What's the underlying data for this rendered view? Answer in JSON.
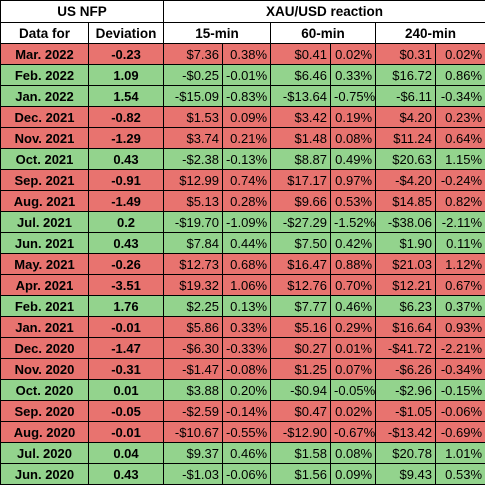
{
  "header": {
    "groups": [
      "US NFP",
      "XAU/USD reaction"
    ],
    "columns": [
      "Data for",
      "Deviation",
      "15-min",
      "60-min",
      "240-min"
    ]
  },
  "colors": {
    "negative": "#e8736f",
    "positive": "#93d38d"
  },
  "table": {
    "rows": [
      {
        "tone": "negative",
        "cells": [
          "Mar. 2022",
          "-0.23",
          "$7.36",
          "0.38%",
          "$0.41",
          "0.02%",
          "$0.31",
          "0.02%"
        ]
      },
      {
        "tone": "positive",
        "cells": [
          "Feb. 2022",
          "1.09",
          "-$0.25",
          "-0.01%",
          "$6.46",
          "0.33%",
          "$16.72",
          "0.86%"
        ]
      },
      {
        "tone": "positive",
        "cells": [
          "Jan. 2022",
          "1.54",
          "-$15.09",
          "-0.83%",
          "-$13.64",
          "-0.75%",
          "-$6.11",
          "-0.34%"
        ]
      },
      {
        "tone": "negative",
        "cells": [
          "Dec. 2021",
          "-0.82",
          "$1.53",
          "0.09%",
          "$3.42",
          "0.19%",
          "$4.20",
          "0.23%"
        ]
      },
      {
        "tone": "negative",
        "cells": [
          "Nov. 2021",
          "-1.29",
          "$3.74",
          "0.21%",
          "$1.48",
          "0.08%",
          "$11.24",
          "0.64%"
        ]
      },
      {
        "tone": "positive",
        "cells": [
          "Oct. 2021",
          "0.43",
          "-$2.38",
          "-0.13%",
          "$8.87",
          "0.49%",
          "$20.63",
          "1.15%"
        ]
      },
      {
        "tone": "negative",
        "cells": [
          "Sep. 2021",
          "-0.91",
          "$12.99",
          "0.74%",
          "$17.17",
          "0.97%",
          "-$4.20",
          "-0.24%"
        ]
      },
      {
        "tone": "negative",
        "cells": [
          "Aug. 2021",
          "-1.49",
          "$5.13",
          "0.28%",
          "$9.66",
          "0.53%",
          "$14.85",
          "0.82%"
        ]
      },
      {
        "tone": "positive",
        "cells": [
          "Jul. 2021",
          "0.2",
          "-$19.70",
          "-1.09%",
          "-$27.29",
          "-1.52%",
          "-$38.06",
          "-2.11%"
        ]
      },
      {
        "tone": "positive",
        "cells": [
          "Jun. 2021",
          "0.43",
          "$7.84",
          "0.44%",
          "$7.50",
          "0.42%",
          "$1.90",
          "0.11%"
        ]
      },
      {
        "tone": "negative",
        "cells": [
          "May. 2021",
          "-0.26",
          "$12.73",
          "0.68%",
          "$16.47",
          "0.88%",
          "$21.03",
          "1.12%"
        ]
      },
      {
        "tone": "negative",
        "cells": [
          "Apr. 2021",
          "-3.51",
          "$19.32",
          "1.06%",
          "$12.76",
          "0.70%",
          "$12.21",
          "0.67%"
        ]
      },
      {
        "tone": "positive",
        "cells": [
          "Feb. 2021",
          "1.76",
          "$2.25",
          "0.13%",
          "$7.77",
          "0.46%",
          "$6.23",
          "0.37%"
        ]
      },
      {
        "tone": "negative",
        "cells": [
          "Jan. 2021",
          "-0.01",
          "$5.86",
          "0.33%",
          "$5.16",
          "0.29%",
          "$16.64",
          "0.93%"
        ]
      },
      {
        "tone": "negative",
        "cells": [
          "Dec. 2020",
          "-1.47",
          "-$6.30",
          "-0.33%",
          "$0.27",
          "0.01%",
          "-$41.72",
          "-2.21%"
        ]
      },
      {
        "tone": "negative",
        "cells": [
          "Nov. 2020",
          "-0.31",
          "-$1.47",
          "-0.08%",
          "$1.25",
          "0.07%",
          "-$6.26",
          "-0.34%"
        ]
      },
      {
        "tone": "positive",
        "cells": [
          "Oct. 2020",
          "0.01",
          "$3.88",
          "0.20%",
          "-$0.94",
          "-0.05%",
          "-$2.96",
          "-0.15%"
        ]
      },
      {
        "tone": "negative",
        "cells": [
          "Sep. 2020",
          "-0.05",
          "-$2.59",
          "-0.14%",
          "$0.47",
          "0.02%",
          "-$1.05",
          "-0.06%"
        ]
      },
      {
        "tone": "negative",
        "cells": [
          "Aug. 2020",
          "-0.01",
          "-$10.67",
          "-0.55%",
          "-$12.90",
          "-0.67%",
          "-$13.42",
          "-0.69%"
        ]
      },
      {
        "tone": "positive",
        "cells": [
          "Jul. 2020",
          "0.04",
          "$9.37",
          "0.46%",
          "$1.58",
          "0.08%",
          "$20.78",
          "1.01%"
        ]
      },
      {
        "tone": "positive",
        "cells": [
          "Jun. 2020",
          "0.43",
          "-$1.03",
          "-0.06%",
          "$1.56",
          "0.09%",
          "$9.43",
          "0.53%"
        ]
      }
    ]
  }
}
